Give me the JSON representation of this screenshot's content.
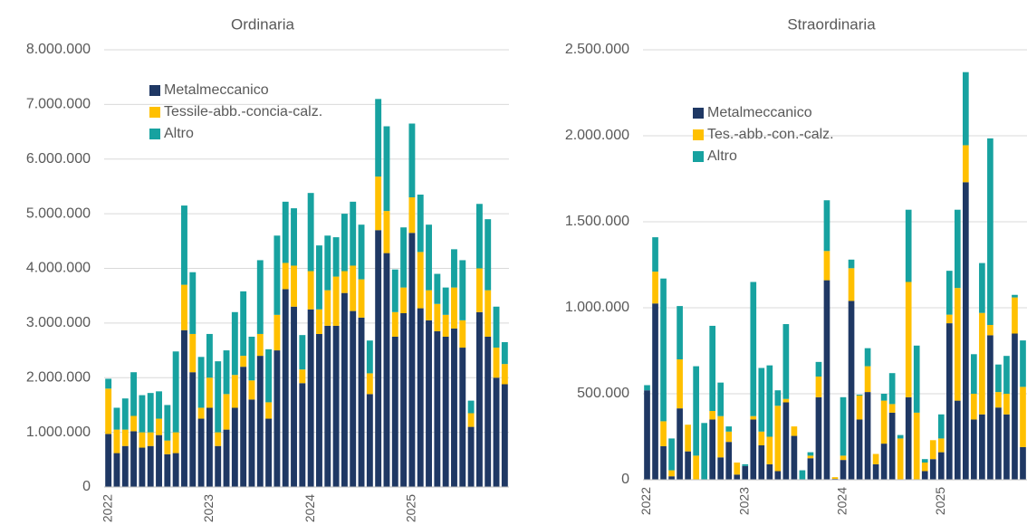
{
  "chart_data": [
    {
      "type": "bar",
      "stacked": true,
      "title": "Ordinaria",
      "categories": [
        "2022",
        null,
        null,
        null,
        null,
        null,
        null,
        null,
        null,
        null,
        null,
        null,
        "2023",
        null,
        null,
        null,
        null,
        null,
        null,
        null,
        null,
        null,
        null,
        null,
        "2024",
        null,
        null,
        null,
        null,
        null,
        null,
        null,
        null,
        null,
        null,
        null,
        "2025",
        null,
        null,
        null,
        null,
        null,
        null,
        null,
        null,
        null,
        null,
        null
      ],
      "series": [
        {
          "name": "Metalmeccanico",
          "color": "#1f3864",
          "values": [
            970000,
            620000,
            750000,
            1020000,
            720000,
            750000,
            950000,
            600000,
            620000,
            2870000,
            2100000,
            1250000,
            1450000,
            750000,
            1050000,
            1450000,
            2200000,
            1600000,
            2400000,
            1250000,
            2500000,
            3620000,
            3300000,
            1900000,
            3250000,
            2800000,
            2950000,
            2950000,
            3550000,
            3220000,
            3100000,
            1700000,
            4700000,
            4280000,
            2750000,
            3180000,
            4650000,
            3270000,
            3050000,
            2850000,
            2750000,
            2900000,
            2550000,
            1100000,
            3200000,
            2750000,
            2000000,
            1880000
          ]
        },
        {
          "name": "Tessile-abb.-concia-calz.",
          "color": "#ffc000",
          "values": [
            830000,
            430000,
            300000,
            280000,
            280000,
            250000,
            300000,
            250000,
            380000,
            830000,
            700000,
            200000,
            550000,
            250000,
            650000,
            600000,
            200000,
            350000,
            400000,
            300000,
            650000,
            480000,
            750000,
            250000,
            700000,
            450000,
            650000,
            900000,
            400000,
            830000,
            700000,
            380000,
            980000,
            770000,
            450000,
            470000,
            650000,
            1030000,
            550000,
            500000,
            400000,
            750000,
            500000,
            250000,
            800000,
            850000,
            550000,
            370000
          ]
        },
        {
          "name": "Altro",
          "color": "#17a2a0",
          "values": [
            180000,
            400000,
            570000,
            800000,
            680000,
            720000,
            500000,
            650000,
            1480000,
            1450000,
            1130000,
            930000,
            800000,
            1300000,
            800000,
            1150000,
            1180000,
            800000,
            1350000,
            970000,
            1450000,
            1120000,
            1050000,
            630000,
            1430000,
            1170000,
            1000000,
            720000,
            1050000,
            1170000,
            1000000,
            600000,
            1420000,
            1550000,
            780000,
            1100000,
            1350000,
            1050000,
            1200000,
            550000,
            500000,
            700000,
            1100000,
            230000,
            1180000,
            1300000,
            750000,
            400000
          ]
        }
      ],
      "ylim": [
        0,
        8000000
      ],
      "yticks": [
        0,
        {
          "value": 1000000,
          "label": "1.000.000"
        },
        {
          "value": 2000000,
          "label": "2.000.000"
        },
        {
          "value": 3000000,
          "label": "3.000.000"
        },
        {
          "value": 4000000,
          "label": "4.000.000"
        },
        {
          "value": 5000000,
          "label": "5.000.000"
        },
        {
          "value": 6000000,
          "label": "6.000.000"
        },
        {
          "value": 7000000,
          "label": "7.000.000"
        },
        {
          "value": 8000000,
          "label": "8.000.000"
        }
      ],
      "grid": true,
      "legend": "upper left"
    },
    {
      "type": "bar",
      "stacked": true,
      "title": "Straordinaria",
      "categories": [
        "2022",
        null,
        null,
        null,
        null,
        null,
        null,
        null,
        null,
        null,
        null,
        null,
        "2023",
        null,
        null,
        null,
        null,
        null,
        null,
        null,
        null,
        null,
        null,
        null,
        "2024",
        null,
        null,
        null,
        null,
        null,
        null,
        null,
        null,
        null,
        null,
        null,
        "2025",
        null,
        null,
        null,
        null,
        null,
        null,
        null,
        null,
        null,
        null
      ],
      "series": [
        {
          "name": "Metalmeccanico",
          "color": "#1f3864",
          "values": [
            520000,
            1025000,
            195000,
            20000,
            415000,
            165000,
            0,
            0,
            350000,
            130000,
            220000,
            30000,
            80000,
            350000,
            200000,
            90000,
            50000,
            450000,
            255000,
            0,
            125000,
            480000,
            1160000,
            5000,
            115000,
            1040000,
            350000,
            510000,
            90000,
            210000,
            390000,
            0,
            480000,
            0,
            50000,
            120000,
            160000,
            910000,
            460000,
            1730000,
            350000,
            380000,
            840000,
            420000,
            380000,
            850000,
            190000
          ]
        },
        {
          "name": "Tes.-abb.-con.-calz.",
          "color": "#ffc000",
          "values": [
            0,
            185000,
            145000,
            35000,
            285000,
            155000,
            140000,
            0,
            50000,
            240000,
            60000,
            70000,
            0,
            20000,
            80000,
            160000,
            380000,
            20000,
            55000,
            0,
            15000,
            120000,
            170000,
            10000,
            25000,
            190000,
            140000,
            150000,
            60000,
            250000,
            50000,
            240000,
            670000,
            390000,
            50000,
            110000,
            80000,
            50000,
            655000,
            215000,
            150000,
            590000,
            60000,
            90000,
            120000,
            210000,
            350000
          ]
        },
        {
          "name": "Altro",
          "color": "#17a2a0",
          "values": [
            30000,
            200000,
            830000,
            185000,
            310000,
            0,
            520000,
            330000,
            495000,
            195000,
            30000,
            0,
            10000,
            780000,
            370000,
            415000,
            90000,
            435000,
            0,
            55000,
            20000,
            85000,
            295000,
            0,
            340000,
            50000,
            5000,
            105000,
            0,
            40000,
            180000,
            20000,
            420000,
            390000,
            20000,
            0,
            140000,
            255000,
            455000,
            425000,
            230000,
            290000,
            1085000,
            160000,
            220000,
            15000,
            270000
          ]
        }
      ],
      "ylim": [
        0,
        2500000
      ],
      "yticks": [
        0,
        {
          "value": 500000,
          "label": "500.000"
        },
        {
          "value": 1000000,
          "label": "1.000.000"
        },
        {
          "value": 1500000,
          "label": "1.500.000"
        },
        {
          "value": 2000000,
          "label": "2.000.000"
        },
        {
          "value": 2500000,
          "label": "2.500.000"
        }
      ],
      "grid": true,
      "legend": "upper left"
    }
  ]
}
